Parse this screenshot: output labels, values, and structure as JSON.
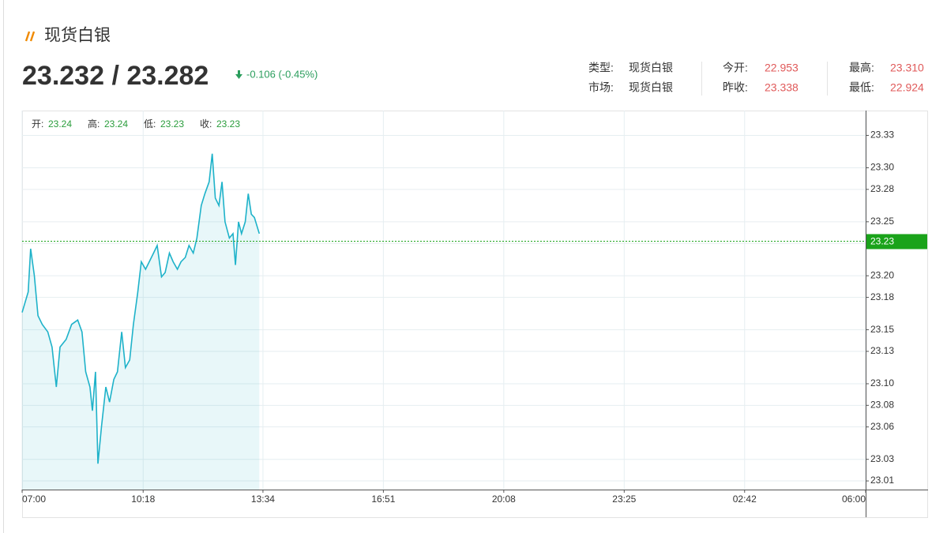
{
  "header": {
    "title": "现货白银",
    "price": "23.232 / 23.282",
    "change": "-0.106 (-0.45%)"
  },
  "info": [
    [
      {
        "label": "类型:",
        "value": "现货白银"
      },
      {
        "label": "今开:",
        "value": "22.953"
      },
      {
        "label": "最高:",
        "value": "23.310"
      }
    ],
    [
      {
        "label": "市场:",
        "value": "现货白银"
      },
      {
        "label": "昨收:",
        "value": "23.338"
      },
      {
        "label": "最低:",
        "value": "22.924"
      }
    ]
  ],
  "ohlc": [
    {
      "label": "开:",
      "value": "23.24"
    },
    {
      "label": "高:",
      "value": "23.24"
    },
    {
      "label": "低:",
      "value": "23.23"
    },
    {
      "label": "收:",
      "value": "23.23"
    }
  ],
  "chart_data": {
    "type": "line",
    "area": true,
    "grid": true,
    "x": [
      "07:00",
      "07:10",
      "07:14",
      "07:20",
      "07:26",
      "07:33",
      "07:42",
      "07:49",
      "07:56",
      "08:02",
      "08:12",
      "08:21",
      "08:31",
      "08:38",
      "08:44",
      "08:51",
      "08:55",
      "09:00",
      "09:04",
      "09:10",
      "09:17",
      "09:23",
      "09:30",
      "09:36",
      "09:43",
      "09:49",
      "09:56",
      "10:02",
      "10:09",
      "10:15",
      "10:22",
      "10:28",
      "10:35",
      "10:41",
      "10:48",
      "10:54",
      "11:01",
      "11:07",
      "11:14",
      "11:20",
      "11:27",
      "11:33",
      "11:40",
      "11:46",
      "11:53",
      "11:59",
      "12:06",
      "12:11",
      "12:16",
      "12:22",
      "12:27",
      "12:32",
      "12:39",
      "12:45",
      "12:49",
      "12:54",
      "12:59",
      "13:05",
      "13:10",
      "13:15",
      "13:20",
      "13:28"
    ],
    "series": [
      {
        "color": "#1eb2c9",
        "values": [
          23.166,
          23.185,
          23.225,
          23.2,
          23.163,
          23.155,
          23.148,
          23.134,
          23.097,
          23.134,
          23.141,
          23.155,
          23.159,
          23.148,
          23.111,
          23.097,
          23.075,
          23.111,
          23.026,
          23.061,
          23.097,
          23.083,
          23.104,
          23.111,
          23.148,
          23.115,
          23.122,
          23.155,
          23.184,
          23.213,
          23.206,
          23.213,
          23.221,
          23.228,
          23.199,
          23.203,
          23.221,
          23.213,
          23.206,
          23.213,
          23.217,
          23.228,
          23.221,
          23.235,
          23.265,
          23.276,
          23.287,
          23.313,
          23.272,
          23.265,
          23.287,
          23.25,
          23.235,
          23.239,
          23.21,
          23.25,
          23.239,
          23.25,
          23.276,
          23.257,
          23.254,
          23.239
        ]
      }
    ],
    "xlim": [
      "07:00",
      "06:00"
    ],
    "xticks": [
      "07:00",
      "10:18",
      "13:34",
      "16:51",
      "20:08",
      "23:25",
      "02:42",
      "06:00"
    ],
    "ylim": [
      23.002,
      23.353
    ],
    "yticks": [
      23.33,
      {
        "value": 23.3,
        "label": "23.30"
      },
      23.28,
      23.25,
      23.23,
      {
        "value": 23.2,
        "label": "23.20"
      },
      23.18,
      23.15,
      23.13,
      {
        "value": 23.1,
        "label": "23.10"
      },
      23.08,
      23.06,
      23.03,
      23.01
    ],
    "last": {
      "value": 23.232,
      "label": "23.23"
    },
    "last_color": "#1aa31a"
  }
}
